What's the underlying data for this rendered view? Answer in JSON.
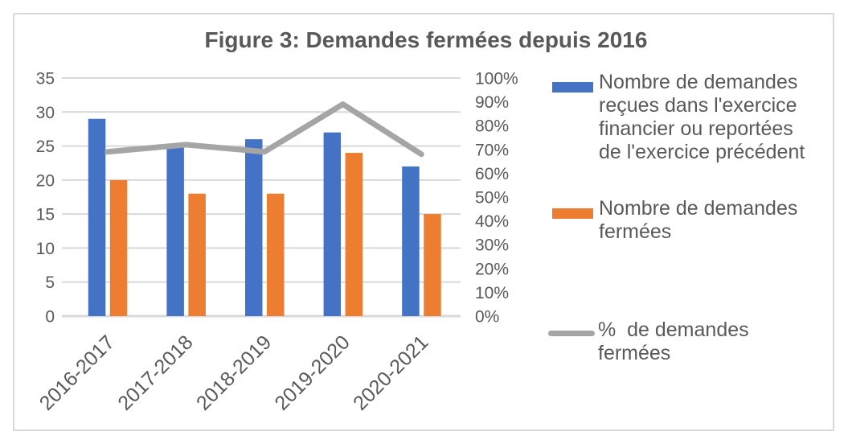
{
  "figure": {
    "title": "Figure 3: Demandes fermées depuis 2016"
  },
  "legend": {
    "position": "right",
    "items": [
      {
        "swatch": "bar",
        "color": "#4472C4",
        "text": "Nombre de demandes\nreçues dans l'exercice\nfinancier ou reportées\nde l'exercice précédent"
      },
      {
        "swatch": "bar",
        "color": "#ED7D31",
        "text": "Nombre de demandes\nfermées"
      },
      {
        "swatch": "line",
        "color": "#A5A5A5",
        "text": "%  de demandes\nfermées"
      }
    ]
  },
  "chart_data": {
    "type": "bar",
    "subtype": "clustered-bars-with-line-dual-axis",
    "title": "Figure 3: Demandes fermées depuis 2016",
    "categories": [
      "2016-2017",
      "2017-2018",
      "2018-2019",
      "2019-2020",
      "2020-2021"
    ],
    "series": [
      {
        "name": "Nombre de demandes reçues dans l'exercice financier ou reportées de l'exercice précédent",
        "type": "bar",
        "axis": "left",
        "color": "#4472C4",
        "values": [
          29,
          25,
          26,
          27,
          22
        ]
      },
      {
        "name": "Nombre de demandes fermées",
        "type": "bar",
        "axis": "left",
        "color": "#ED7D31",
        "values": [
          20,
          18,
          18,
          24,
          15
        ]
      },
      {
        "name": "% de demandes fermées",
        "type": "line",
        "axis": "right",
        "color": "#A5A5A5",
        "unit": "%",
        "values": [
          69,
          72,
          69,
          89,
          68
        ]
      }
    ],
    "left_axis": {
      "min": 0,
      "max": 35,
      "step": 5,
      "tick_labels": [
        "35",
        "30",
        "25",
        "20",
        "15",
        "10",
        "5",
        "0"
      ]
    },
    "right_axis": {
      "min": 0,
      "max": 100,
      "step": 10,
      "tick_labels": [
        "100%",
        "90%",
        "80%",
        "70%",
        "60%",
        "50%",
        "40%",
        "30%",
        "20%",
        "10%",
        "0%"
      ]
    },
    "grid": true,
    "legend_position": "right"
  },
  "colors": {
    "bar_blue": "#4472C4",
    "bar_orange": "#ED7D31",
    "line_gray": "#A5A5A5",
    "text": "#595959",
    "gridline": "#D9D9D9",
    "frame_border": "#D9D9D9",
    "background": "#FFFFFF"
  }
}
